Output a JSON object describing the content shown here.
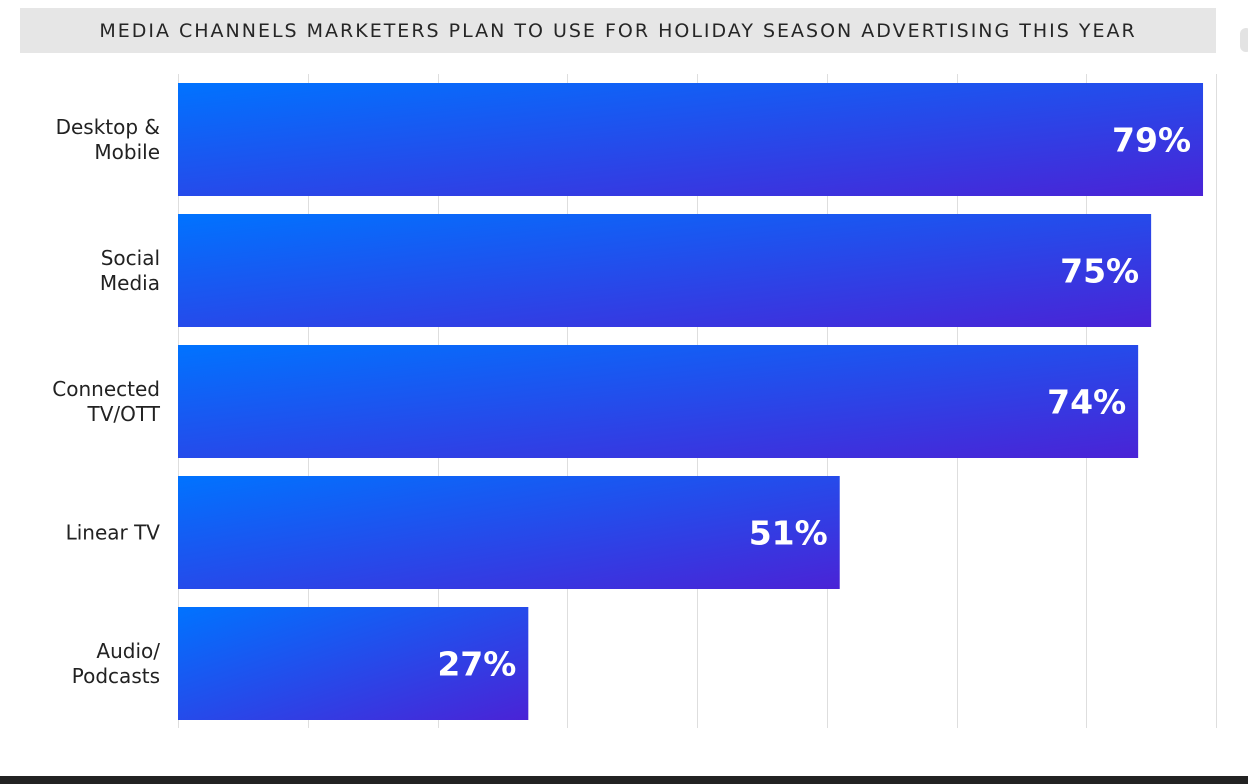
{
  "chart_data": {
    "type": "bar",
    "orientation": "horizontal",
    "title": "MEDIA CHANNELS MARKETERS PLAN TO USE FOR HOLIDAY SEASON ADVERTISING THIS YEAR",
    "categories": [
      [
        "Desktop &",
        "Mobile"
      ],
      [
        "Social",
        "Media"
      ],
      [
        "Connected",
        "TV/OTT"
      ],
      [
        "Linear TV"
      ],
      [
        "Audio/",
        "Podcasts"
      ]
    ],
    "values": [
      79,
      75,
      74,
      51,
      27
    ],
    "value_labels": [
      "79%",
      "75%",
      "74%",
      "51%",
      "27%"
    ],
    "xlim": [
      0,
      80
    ],
    "x_gridlines": [
      0,
      10,
      20,
      30,
      40,
      50,
      60,
      70,
      80
    ],
    "grid": true,
    "legend": "none",
    "colors": {
      "bar_start": "#0073ff",
      "bar_end": "#4a23d6",
      "title_bg": "#e6e6e6",
      "grid": "#dedede",
      "text": "#222222"
    }
  }
}
